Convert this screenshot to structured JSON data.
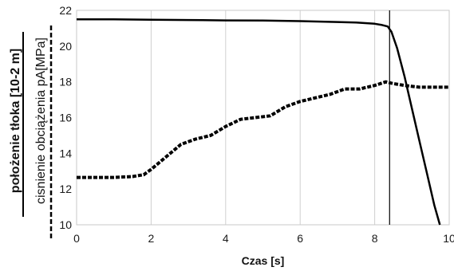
{
  "chart_data": {
    "type": "line",
    "title": "",
    "xlabel": "Czas [s]",
    "ylabel_primary": "położenie tłoka [10-2 m]",
    "ylabel_secondary": "cisnienie obciążenia  pA[MPa]",
    "xlim": [
      0,
      10
    ],
    "ylim": [
      10,
      22
    ],
    "x_ticks": [
      "0",
      "2",
      "4",
      "6",
      "8",
      "10"
    ],
    "y_ticks": [
      "10",
      "12",
      "14",
      "16",
      "18",
      "20",
      "22"
    ],
    "grid": "vertical",
    "series": [
      {
        "style": "solid",
        "x": [
          0,
          1,
          2,
          3,
          4,
          5,
          6,
          7,
          7.5,
          8,
          8.2,
          8.35,
          8.45,
          8.6,
          8.8,
          9.0,
          9.2,
          9.4,
          9.6,
          9.75
        ],
        "y": [
          21.5,
          21.5,
          21.48,
          21.46,
          21.44,
          21.43,
          21.4,
          21.35,
          21.32,
          21.25,
          21.18,
          21.1,
          20.8,
          19.9,
          18.3,
          16.5,
          14.7,
          12.9,
          11.1,
          10.0
        ]
      },
      {
        "style": "dashed",
        "x": [
          0,
          0.5,
          1,
          1.5,
          1.8,
          2.0,
          2.4,
          2.8,
          3.2,
          3.6,
          4.0,
          4.4,
          4.8,
          5.2,
          5.6,
          6.0,
          6.4,
          6.8,
          7.2,
          7.6,
          8.0,
          8.3,
          8.5,
          8.8,
          9.2,
          9.6,
          10
        ],
        "y": [
          12.65,
          12.65,
          12.65,
          12.7,
          12.8,
          13.1,
          13.8,
          14.5,
          14.8,
          15.0,
          15.5,
          15.9,
          16.0,
          16.1,
          16.6,
          16.9,
          17.1,
          17.3,
          17.6,
          17.6,
          17.8,
          18.0,
          17.9,
          17.8,
          17.7,
          17.7,
          17.7
        ]
      }
    ],
    "marker_line_x": 8.4
  }
}
